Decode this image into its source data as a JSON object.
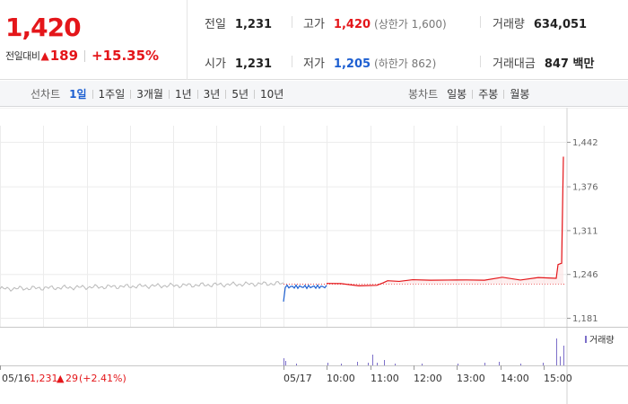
{
  "quote": {
    "price": "1,420",
    "change_label": "전일대비",
    "change_arrow": "▲",
    "change_value": "189",
    "change_percent": "+15.35%",
    "stats": {
      "prev_close": {
        "label": "전일",
        "value": "1,231"
      },
      "open": {
        "label": "시가",
        "value": "1,231"
      },
      "high": {
        "label": "고가",
        "value": "1,420",
        "limit": "(상한가 1,600)"
      },
      "low": {
        "label": "저가",
        "value": "1,205",
        "limit": "(하한가 862)"
      },
      "volume": {
        "label": "거래량",
        "value": "634,051"
      },
      "amount": {
        "label": "거래대금",
        "value": "847 백만"
      }
    }
  },
  "toolbar": {
    "line_label": "선차트",
    "line_periods": [
      "1일",
      "1주일",
      "3개월",
      "1년",
      "3년",
      "5년",
      "10년"
    ],
    "active_line_period": "1일",
    "candle_label": "봉차트",
    "candle_periods": [
      "일봉",
      "주봉",
      "월봉"
    ]
  },
  "chart_data": {
    "type": "line",
    "title": "",
    "y_ticks": [
      "1,442",
      "1,376",
      "1,311",
      "1,246",
      "1,181"
    ],
    "ylim": [
      1181,
      1442
    ],
    "prev_close": 1231,
    "x_ticks": [
      "05/17",
      "10:00",
      "11:00",
      "12:00",
      "13:00",
      "14:00",
      "15:00"
    ],
    "previous_day": {
      "date": "05/16",
      "close": "1,231",
      "arrow": "▲",
      "change": "29",
      "change_percent": "(+2.41%)"
    },
    "volume_legend": "거래량",
    "colors": {
      "up": "#e4161a",
      "down": "#1d5fd1",
      "prev": "#b9b9b9",
      "volume": "#7c6fc9",
      "grid": "#ececec"
    }
  }
}
